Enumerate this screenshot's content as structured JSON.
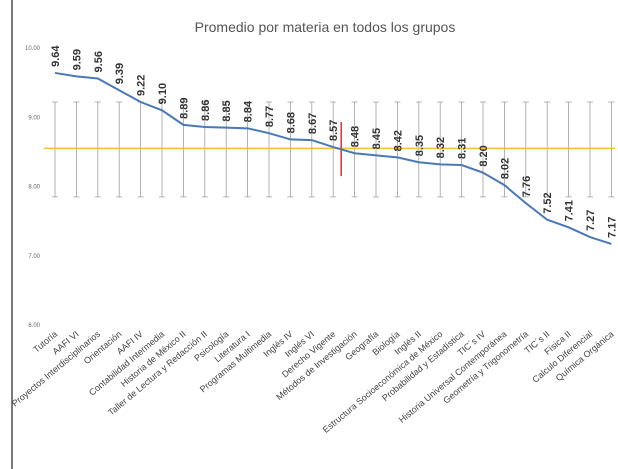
{
  "chart_data": {
    "type": "line",
    "title": "Promedio por materia en todos los grupos",
    "categories": [
      "Tutoría",
      "AAFI  VI",
      "Proyectos Interdisciplinarios",
      "Orientación",
      "AAFI  IV",
      "Contabilidad Intermedia",
      "Historia de México II",
      "Taller de Lectura y Redacción II",
      "Psicología",
      "Literatura I",
      "Programas Multimedia",
      "Inglés IV",
      "Inglés VI",
      "Derecho Vigente",
      "Métodos de Investigación",
      "Geografía",
      "Biología",
      "Inglés II",
      "Estructura Socioeconómica de México",
      "Probabilidad y Estadística",
      "TIC´s IV",
      "Historia Universal Contemporánea",
      "Geometría y Trigonometría",
      "TIC´s II",
      "Física II",
      "Calculo Diferencial",
      "Química Orgánica"
    ],
    "series": [
      {
        "color": "#4a78b8",
        "values": [
          9.64,
          9.59,
          9.56,
          9.39,
          9.22,
          9.1,
          8.89,
          8.86,
          8.85,
          8.84,
          8.77,
          8.68,
          8.67,
          8.57,
          8.48,
          8.45,
          8.42,
          8.35,
          8.32,
          8.31,
          8.2,
          8.02,
          7.76,
          7.52,
          7.41,
          7.27,
          7.17
        ],
        "value_labels": [
          "9.64",
          "9.59",
          "9.56",
          "9.39",
          "9.22",
          "9.10",
          "8.89",
          "8.86",
          "8.85",
          "8.84",
          "8.77",
          "8.68",
          "8.67",
          "8.57",
          "8.48",
          "8.45",
          "8.42",
          "8.35",
          "8.32",
          "8.31",
          "8.20",
          "8.02",
          "7.76",
          "7.52",
          "7.41",
          "7.27",
          "7.17"
        ]
      }
    ],
    "ylim": [
      6,
      10
    ],
    "yticks": [
      {
        "value": 6,
        "label": "6.00"
      },
      {
        "value": 7,
        "label": "7.00"
      },
      {
        "value": 8,
        "label": "8.00"
      },
      {
        "value": 9,
        "label": "9.00"
      },
      {
        "value": 10,
        "label": "10.00"
      }
    ],
    "mean_line": {
      "value": 8.55,
      "color": "#f2c230"
    },
    "range_bars": {
      "low": 7.85,
      "high": 9.22,
      "color": "#a0a0a0"
    },
    "highlight": {
      "index": 13,
      "low": 8.15,
      "high": 8.93,
      "color": "#e03030"
    }
  }
}
